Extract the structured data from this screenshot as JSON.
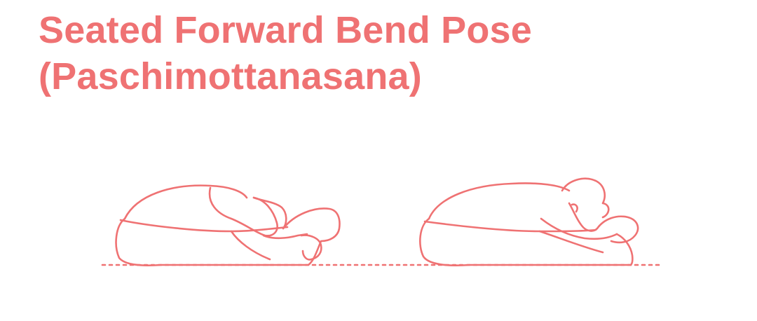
{
  "title": {
    "line1": "Seated Forward Bend Pose",
    "line2": "(Paschimottanasana)"
  },
  "colors": {
    "accent": "#ef7273",
    "background": "#ffffff"
  },
  "figures": [
    {
      "view": "side-view-left"
    },
    {
      "view": "side-view-right"
    }
  ]
}
